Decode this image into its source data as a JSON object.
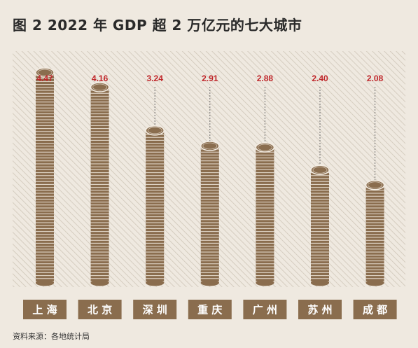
{
  "title": "图 2  2022 年 GDP 超 2 万亿元的七大城市",
  "source": "资料来源：各地统计局",
  "colors": {
    "background": "#efe9e0",
    "hatch": "#cfc6b8",
    "coin": "#8a6d4e",
    "coin_rim": "#f3ece2",
    "value_label": "#c0262a",
    "label_box": "#8a6d4e",
    "label_text": "#ffffff",
    "leader": "#6b6b6b"
  },
  "chart_data": {
    "type": "bar",
    "title": "图 2  2022 年 GDP 超 2 万亿元的七大城市",
    "categories": [
      "上 海",
      "北 京",
      "深 圳",
      "重 庆",
      "广 州",
      "苏 州",
      "成 都"
    ],
    "values": [
      4.47,
      4.16,
      3.24,
      2.91,
      2.88,
      2.4,
      2.08
    ],
    "value_labels": [
      "4.47",
      "4.16",
      "3.24",
      "2.91",
      "2.88",
      "2.40",
      "2.08"
    ],
    "ylim": [
      0,
      5.15
    ],
    "grid": false,
    "legend": "none",
    "xlabel": "",
    "ylabel": ""
  }
}
